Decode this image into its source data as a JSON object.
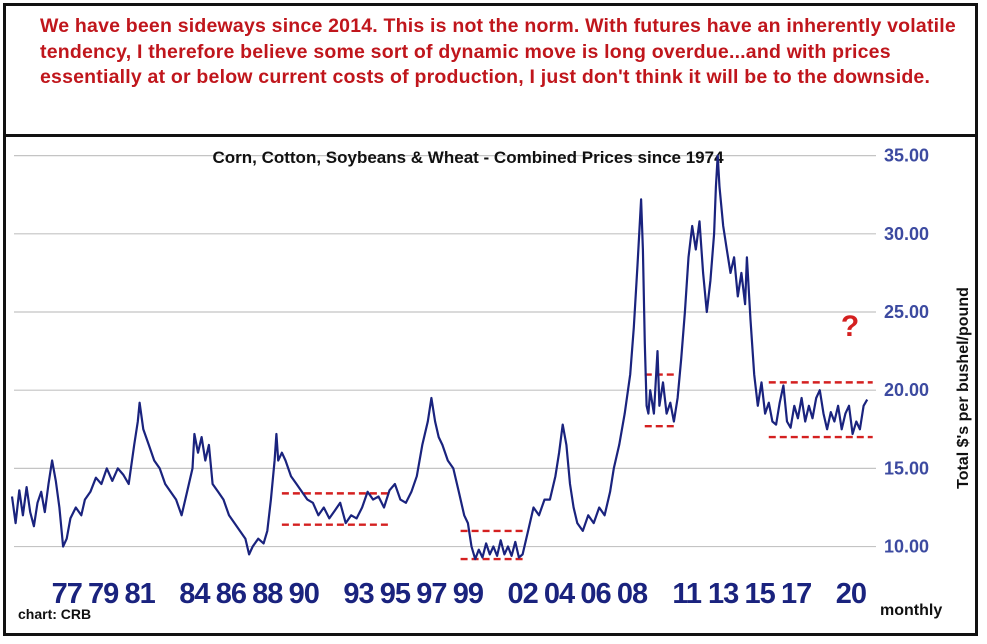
{
  "commentary": "We have been sideways since 2014. This is not the norm. With futures have an inherently volatile tendency, I therefore believe some sort of dynamic move is long overdue...and with prices essentially at or below current costs of production, I just don't think it will be to the downside.",
  "chart_data": {
    "type": "line",
    "title": "Corn, Cotton, Soybeans & Wheat - Combined Prices since 1974",
    "ylabel": "Total $'s per bushel/pound",
    "xlabel": "",
    "frequency_label": "monthly",
    "source_label": "chart: CRB",
    "annotation": "?",
    "ylim": [
      8.5,
      36
    ],
    "y_ticks": [
      10,
      15,
      20,
      25,
      30,
      35
    ],
    "y_tick_labels": [
      "10.00",
      "15.00",
      "20.00",
      "25.00",
      "30.00",
      "35.00"
    ],
    "xlim": [
      1974,
      2021.6
    ],
    "x_tick_labels": [
      {
        "label": "77",
        "year": 1977
      },
      {
        "label": "79",
        "year": 1979
      },
      {
        "label": "81",
        "year": 1981
      },
      {
        "label": "84",
        "year": 1984
      },
      {
        "label": "86",
        "year": 1986
      },
      {
        "label": "88",
        "year": 1988
      },
      {
        "label": "90",
        "year": 1990
      },
      {
        "label": "93",
        "year": 1993
      },
      {
        "label": "95",
        "year": 1995
      },
      {
        "label": "97",
        "year": 1997
      },
      {
        "label": "99",
        "year": 1999
      },
      {
        "label": "02",
        "year": 2002
      },
      {
        "label": "04",
        "year": 2004
      },
      {
        "label": "06",
        "year": 2006
      },
      {
        "label": "08",
        "year": 2008
      },
      {
        "label": "11",
        "year": 2011
      },
      {
        "label": "13",
        "year": 2013
      },
      {
        "label": "15",
        "year": 2015
      },
      {
        "label": "17",
        "year": 2017
      },
      {
        "label": "20",
        "year": 2020
      }
    ],
    "grid": true,
    "line_color": "#1a237e",
    "range_color": "#d42020",
    "annotation_color": "#d42020",
    "axis_label_color": "#3c4aa0",
    "series": [
      {
        "values": [
          [
            1974.0,
            13.2
          ],
          [
            1974.2,
            11.5
          ],
          [
            1974.4,
            13.6
          ],
          [
            1974.6,
            12.0
          ],
          [
            1974.8,
            13.8
          ],
          [
            1975.0,
            12.2
          ],
          [
            1975.2,
            11.3
          ],
          [
            1975.4,
            12.8
          ],
          [
            1975.6,
            13.5
          ],
          [
            1975.8,
            12.2
          ],
          [
            1976.0,
            14.0
          ],
          [
            1976.2,
            15.5
          ],
          [
            1976.4,
            14.2
          ],
          [
            1976.6,
            12.5
          ],
          [
            1976.8,
            10.0
          ],
          [
            1977.0,
            10.5
          ],
          [
            1977.2,
            11.8
          ],
          [
            1977.5,
            12.5
          ],
          [
            1977.8,
            12.0
          ],
          [
            1978.0,
            13.0
          ],
          [
            1978.3,
            13.5
          ],
          [
            1978.6,
            14.4
          ],
          [
            1978.9,
            14.0
          ],
          [
            1979.2,
            15.0
          ],
          [
            1979.5,
            14.2
          ],
          [
            1979.8,
            15.0
          ],
          [
            1980.1,
            14.6
          ],
          [
            1980.4,
            14.0
          ],
          [
            1980.7,
            16.5
          ],
          [
            1980.9,
            18.0
          ],
          [
            1981.0,
            19.2
          ],
          [
            1981.2,
            17.5
          ],
          [
            1981.5,
            16.5
          ],
          [
            1981.8,
            15.5
          ],
          [
            1982.1,
            15.0
          ],
          [
            1982.4,
            14.0
          ],
          [
            1982.7,
            13.5
          ],
          [
            1983.0,
            13.0
          ],
          [
            1983.3,
            12.0
          ],
          [
            1983.6,
            13.5
          ],
          [
            1983.9,
            15.0
          ],
          [
            1984.0,
            17.2
          ],
          [
            1984.2,
            16.0
          ],
          [
            1984.4,
            17.0
          ],
          [
            1984.6,
            15.5
          ],
          [
            1984.8,
            16.5
          ],
          [
            1985.0,
            14.0
          ],
          [
            1985.3,
            13.5
          ],
          [
            1985.6,
            13.0
          ],
          [
            1985.9,
            12.0
          ],
          [
            1986.2,
            11.5
          ],
          [
            1986.5,
            11.0
          ],
          [
            1986.8,
            10.5
          ],
          [
            1987.0,
            9.5
          ],
          [
            1987.2,
            10.0
          ],
          [
            1987.5,
            10.5
          ],
          [
            1987.8,
            10.2
          ],
          [
            1988.0,
            11.0
          ],
          [
            1988.2,
            13.0
          ],
          [
            1988.4,
            15.5
          ],
          [
            1988.5,
            17.2
          ],
          [
            1988.6,
            15.5
          ],
          [
            1988.8,
            16.0
          ],
          [
            1989.0,
            15.5
          ],
          [
            1989.3,
            14.5
          ],
          [
            1989.6,
            14.0
          ],
          [
            1989.9,
            13.5
          ],
          [
            1990.2,
            13.0
          ],
          [
            1990.5,
            12.8
          ],
          [
            1990.8,
            12.0
          ],
          [
            1991.1,
            12.5
          ],
          [
            1991.4,
            11.8
          ],
          [
            1991.7,
            12.3
          ],
          [
            1992.0,
            12.8
          ],
          [
            1992.3,
            11.5
          ],
          [
            1992.6,
            12.0
          ],
          [
            1992.9,
            11.8
          ],
          [
            1993.2,
            12.5
          ],
          [
            1993.5,
            13.5
          ],
          [
            1993.8,
            13.0
          ],
          [
            1994.1,
            13.2
          ],
          [
            1994.4,
            12.5
          ],
          [
            1994.7,
            13.6
          ],
          [
            1995.0,
            14.0
          ],
          [
            1995.3,
            13.0
          ],
          [
            1995.6,
            12.8
          ],
          [
            1995.9,
            13.5
          ],
          [
            1996.2,
            14.5
          ],
          [
            1996.5,
            16.5
          ],
          [
            1996.8,
            18.0
          ],
          [
            1997.0,
            19.5
          ],
          [
            1997.2,
            18.0
          ],
          [
            1997.4,
            17.0
          ],
          [
            1997.6,
            16.5
          ],
          [
            1997.9,
            15.5
          ],
          [
            1998.2,
            15.0
          ],
          [
            1998.5,
            13.5
          ],
          [
            1998.8,
            12.0
          ],
          [
            1999.0,
            11.5
          ],
          [
            1999.2,
            10.0
          ],
          [
            1999.4,
            9.2
          ],
          [
            1999.6,
            9.8
          ],
          [
            1999.8,
            9.3
          ],
          [
            2000.0,
            10.2
          ],
          [
            2000.2,
            9.5
          ],
          [
            2000.4,
            10.0
          ],
          [
            2000.6,
            9.4
          ],
          [
            2000.8,
            10.4
          ],
          [
            2001.0,
            9.5
          ],
          [
            2001.2,
            10.0
          ],
          [
            2001.4,
            9.4
          ],
          [
            2001.6,
            10.3
          ],
          [
            2001.8,
            9.3
          ],
          [
            2002.0,
            9.5
          ],
          [
            2002.3,
            11.0
          ],
          [
            2002.6,
            12.5
          ],
          [
            2002.9,
            12.0
          ],
          [
            2003.2,
            13.0
          ],
          [
            2003.5,
            13.0
          ],
          [
            2003.8,
            14.5
          ],
          [
            2004.0,
            16.0
          ],
          [
            2004.2,
            17.8
          ],
          [
            2004.4,
            16.5
          ],
          [
            2004.6,
            14.0
          ],
          [
            2004.8,
            12.5
          ],
          [
            2005.0,
            11.5
          ],
          [
            2005.3,
            11.0
          ],
          [
            2005.6,
            12.0
          ],
          [
            2005.9,
            11.5
          ],
          [
            2006.2,
            12.5
          ],
          [
            2006.5,
            12.0
          ],
          [
            2006.8,
            13.5
          ],
          [
            2007.0,
            15.0
          ],
          [
            2007.3,
            16.5
          ],
          [
            2007.6,
            18.5
          ],
          [
            2007.9,
            21.0
          ],
          [
            2008.1,
            24.0
          ],
          [
            2008.3,
            28.0
          ],
          [
            2008.5,
            32.2
          ],
          [
            2008.6,
            29.0
          ],
          [
            2008.7,
            23.0
          ],
          [
            2008.8,
            19.0
          ],
          [
            2008.9,
            18.5
          ],
          [
            2009.0,
            20.0
          ],
          [
            2009.2,
            18.5
          ],
          [
            2009.4,
            22.5
          ],
          [
            2009.5,
            19.0
          ],
          [
            2009.7,
            20.5
          ],
          [
            2009.9,
            18.5
          ],
          [
            2010.1,
            19.2
          ],
          [
            2010.3,
            18.0
          ],
          [
            2010.5,
            19.5
          ],
          [
            2010.7,
            22.0
          ],
          [
            2010.9,
            25.0
          ],
          [
            2011.1,
            28.5
          ],
          [
            2011.3,
            30.5
          ],
          [
            2011.5,
            29.0
          ],
          [
            2011.7,
            30.8
          ],
          [
            2011.9,
            27.5
          ],
          [
            2012.1,
            25.0
          ],
          [
            2012.3,
            27.0
          ],
          [
            2012.5,
            30.0
          ],
          [
            2012.6,
            33.0
          ],
          [
            2012.7,
            35.0
          ],
          [
            2012.8,
            33.0
          ],
          [
            2013.0,
            30.5
          ],
          [
            2013.2,
            29.0
          ],
          [
            2013.4,
            27.5
          ],
          [
            2013.6,
            28.5
          ],
          [
            2013.8,
            26.0
          ],
          [
            2014.0,
            27.5
          ],
          [
            2014.2,
            25.5
          ],
          [
            2014.3,
            28.5
          ],
          [
            2014.5,
            24.5
          ],
          [
            2014.7,
            21.0
          ],
          [
            2014.9,
            19.0
          ],
          [
            2015.1,
            20.5
          ],
          [
            2015.3,
            18.5
          ],
          [
            2015.5,
            19.2
          ],
          [
            2015.7,
            18.0
          ],
          [
            2015.9,
            17.8
          ],
          [
            2016.1,
            19.2
          ],
          [
            2016.3,
            20.3
          ],
          [
            2016.5,
            18.0
          ],
          [
            2016.7,
            17.6
          ],
          [
            2016.9,
            19.0
          ],
          [
            2017.1,
            18.2
          ],
          [
            2017.3,
            19.5
          ],
          [
            2017.5,
            18.0
          ],
          [
            2017.7,
            19.0
          ],
          [
            2017.9,
            18.2
          ],
          [
            2018.1,
            19.5
          ],
          [
            2018.3,
            20.0
          ],
          [
            2018.5,
            18.5
          ],
          [
            2018.7,
            17.5
          ],
          [
            2018.9,
            18.6
          ],
          [
            2019.1,
            18.0
          ],
          [
            2019.3,
            19.0
          ],
          [
            2019.5,
            17.5
          ],
          [
            2019.7,
            18.5
          ],
          [
            2019.9,
            19.0
          ],
          [
            2020.1,
            17.2
          ],
          [
            2020.3,
            18.0
          ],
          [
            2020.5,
            17.5
          ],
          [
            2020.7,
            19.0
          ],
          [
            2020.9,
            19.4
          ]
        ]
      }
    ],
    "ranges": [
      {
        "x0": 1988.8,
        "x1": 1994.8,
        "y_top": 13.4,
        "y_bottom": 11.4
      },
      {
        "x0": 1998.6,
        "x1": 2002.0,
        "y_top": 11.0,
        "y_bottom": 9.2
      },
      {
        "x0": 2008.7,
        "x1": 2010.4,
        "y_top": 21.0,
        "y_bottom": 17.7
      },
      {
        "x0": 2015.5,
        "x1": 2021.2,
        "y_top": 20.5,
        "y_bottom": 17.0
      }
    ]
  }
}
